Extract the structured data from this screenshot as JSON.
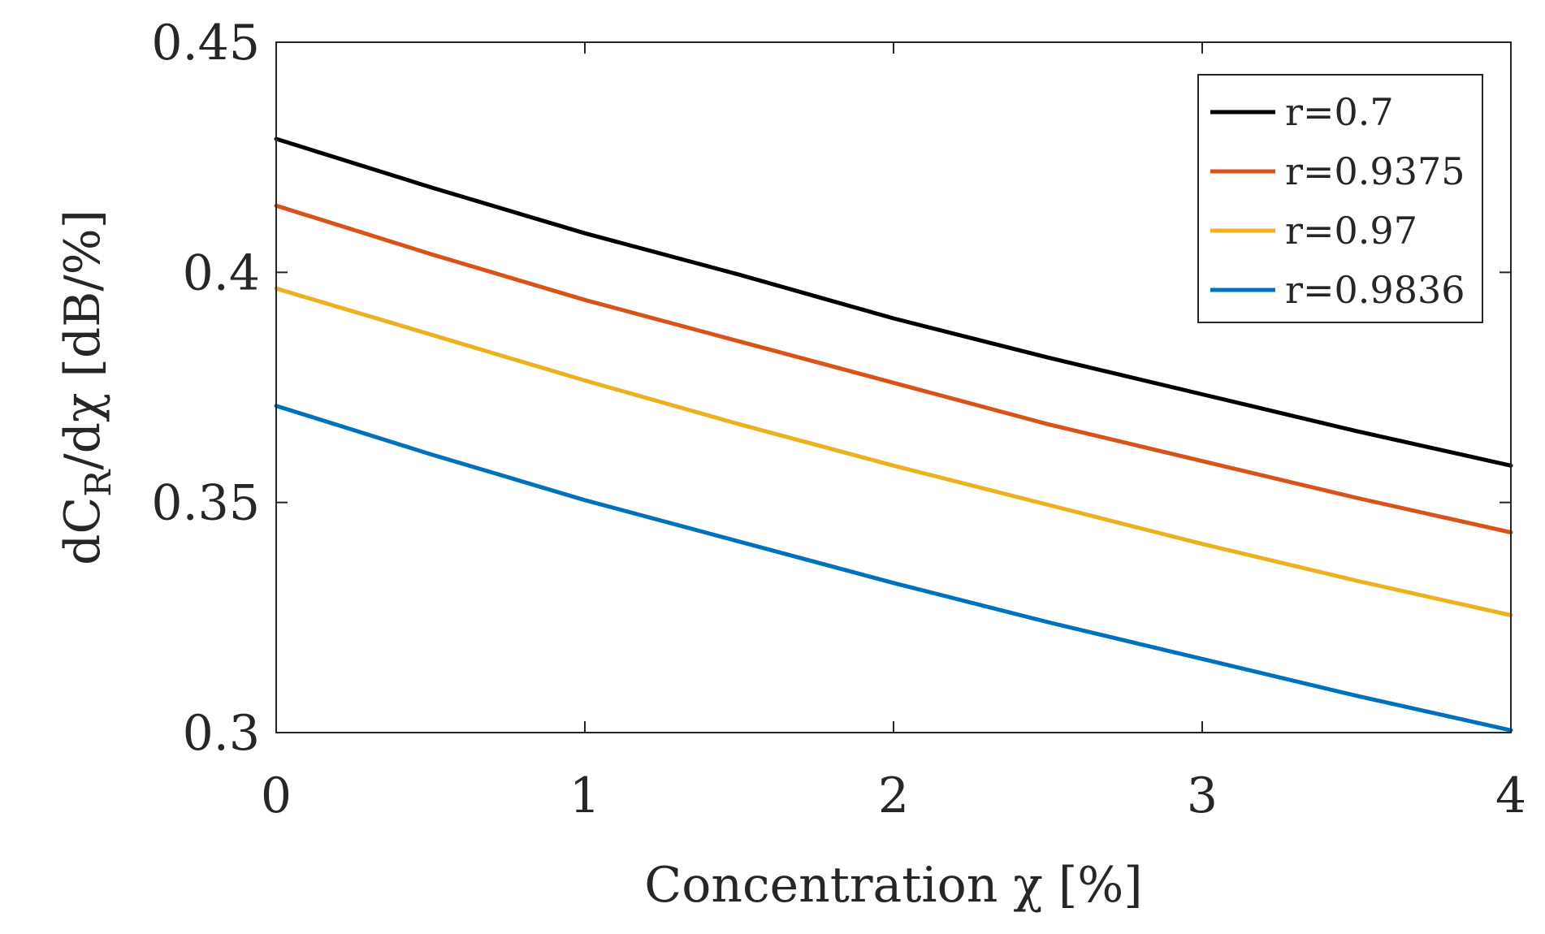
{
  "chart_data": {
    "type": "line",
    "x": [
      0,
      0.5,
      1,
      1.5,
      2,
      2.5,
      3,
      3.5,
      4
    ],
    "series": [
      {
        "name": "r=0.7",
        "color": "#000000",
        "values": [
          0.429,
          0.4185,
          0.4085,
          0.3995,
          0.39,
          0.3815,
          0.3735,
          0.3655,
          0.358
        ]
      },
      {
        "name": "r=0.9375",
        "color": "#D95319",
        "values": [
          0.4145,
          0.404,
          0.394,
          0.385,
          0.376,
          0.367,
          0.359,
          0.351,
          0.3435
        ]
      },
      {
        "name": "r=0.97",
        "color": "#EDB120",
        "values": [
          0.3965,
          0.3865,
          0.3765,
          0.367,
          0.358,
          0.3495,
          0.341,
          0.333,
          0.3255
        ]
      },
      {
        "name": "r=0.9836",
        "color": "#0072BD",
        "values": [
          0.371,
          0.3605,
          0.3505,
          0.3415,
          0.3325,
          0.324,
          0.316,
          0.308,
          0.3005
        ]
      }
    ],
    "xlim": [
      0,
      4
    ],
    "ylim": [
      0.3,
      0.45
    ],
    "xticks": [
      "0",
      "1",
      "2",
      "3",
      "4"
    ],
    "yticks": [
      "0.3",
      "0.35",
      "0.4",
      "0.45"
    ],
    "xlabel": "Concentration χ [%]",
    "ylabel_parts": {
      "a": "dC",
      "sub": "R",
      "b": "/dχ [dB/%]"
    },
    "legend": "top-right",
    "grid": false
  }
}
